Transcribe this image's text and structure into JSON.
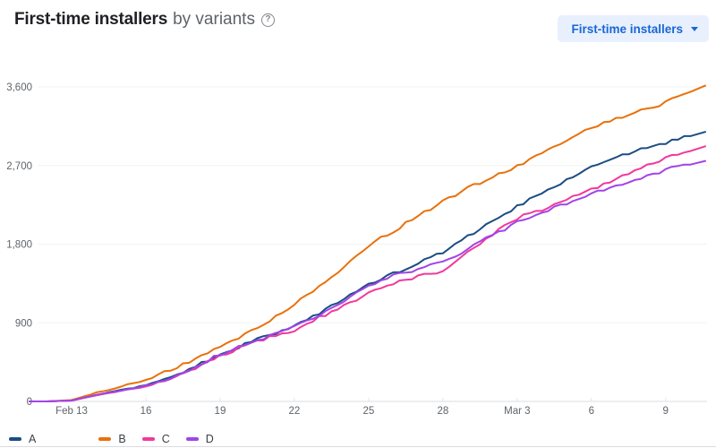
{
  "header": {
    "title": "First-time installers",
    "subtitle": "by variants",
    "help_icon": "help-circle"
  },
  "metric_selector": {
    "label": "First-time installers",
    "icon": "chevron-down",
    "bg_color": "#e8f0fe",
    "text_color": "#1967d2"
  },
  "chart_data": {
    "type": "line",
    "title": "First-time installers by variants",
    "xlabel": "",
    "ylabel": "",
    "grid": true,
    "legend_position": "bottom-left",
    "axis_text_color": "#5f6368",
    "gridline_color": "#f1f3f4",
    "baseline_color": "#dadce0",
    "ylim": [
      0,
      3780
    ],
    "y_ticks": [
      0,
      900,
      1800,
      2700,
      3600
    ],
    "y_tick_labels": [
      "0",
      "900",
      "1,800",
      "2,700",
      "3,600"
    ],
    "dates": [
      "Feb 12",
      "Feb 13",
      "Feb 14",
      "Feb 15",
      "Feb 16",
      "Feb 17",
      "Feb 18",
      "Feb 19",
      "Feb 20",
      "Feb 21",
      "Feb 22",
      "Feb 23",
      "Feb 24",
      "Feb 25",
      "Feb 26",
      "Feb 27",
      "Feb 28",
      "Mar 1",
      "Mar 2",
      "Mar 3",
      "Mar 4",
      "Mar 5",
      "Mar 6",
      "Mar 7",
      "Mar 8",
      "Mar 9",
      "Mar 10"
    ],
    "x_ticks": [
      {
        "label": "Feb 13",
        "index": 1
      },
      {
        "label": "16",
        "index": 4
      },
      {
        "label": "19",
        "index": 7
      },
      {
        "label": "22",
        "index": 10
      },
      {
        "label": "25",
        "index": 13
      },
      {
        "label": "28",
        "index": 16
      },
      {
        "label": "Mar 3",
        "index": 19
      },
      {
        "label": "6",
        "index": 22
      },
      {
        "label": "9",
        "index": 25
      }
    ],
    "x_domain_indices": [
      -0.7,
      26.6
    ],
    "series": [
      {
        "name": "A",
        "color": "#1b4d82",
        "values": [
          0,
          10,
          75,
          130,
          185,
          270,
          400,
          550,
          650,
          760,
          860,
          1010,
          1170,
          1340,
          1460,
          1580,
          1700,
          1890,
          2060,
          2240,
          2380,
          2530,
          2680,
          2790,
          2880,
          2960,
          3040
        ]
      },
      {
        "name": "B",
        "color": "#e8710a",
        "values": [
          0,
          15,
          100,
          170,
          250,
          360,
          480,
          620,
          770,
          930,
          1110,
          1310,
          1540,
          1780,
          1950,
          2120,
          2290,
          2440,
          2570,
          2700,
          2840,
          2990,
          3130,
          3230,
          3330,
          3420,
          3540
        ]
      },
      {
        "name": "C",
        "color": "#f0399b",
        "values": [
          0,
          10,
          70,
          120,
          175,
          260,
          380,
          520,
          630,
          730,
          820,
          960,
          1100,
          1240,
          1360,
          1430,
          1500,
          1720,
          1910,
          2100,
          2200,
          2310,
          2430,
          2550,
          2670,
          2780,
          2870
        ]
      },
      {
        "name": "D",
        "color": "#a044e8",
        "values": [
          0,
          10,
          75,
          125,
          180,
          265,
          390,
          540,
          645,
          745,
          850,
          990,
          1140,
          1320,
          1440,
          1520,
          1590,
          1750,
          1900,
          2050,
          2160,
          2270,
          2370,
          2470,
          2560,
          2650,
          2720
        ]
      }
    ]
  }
}
